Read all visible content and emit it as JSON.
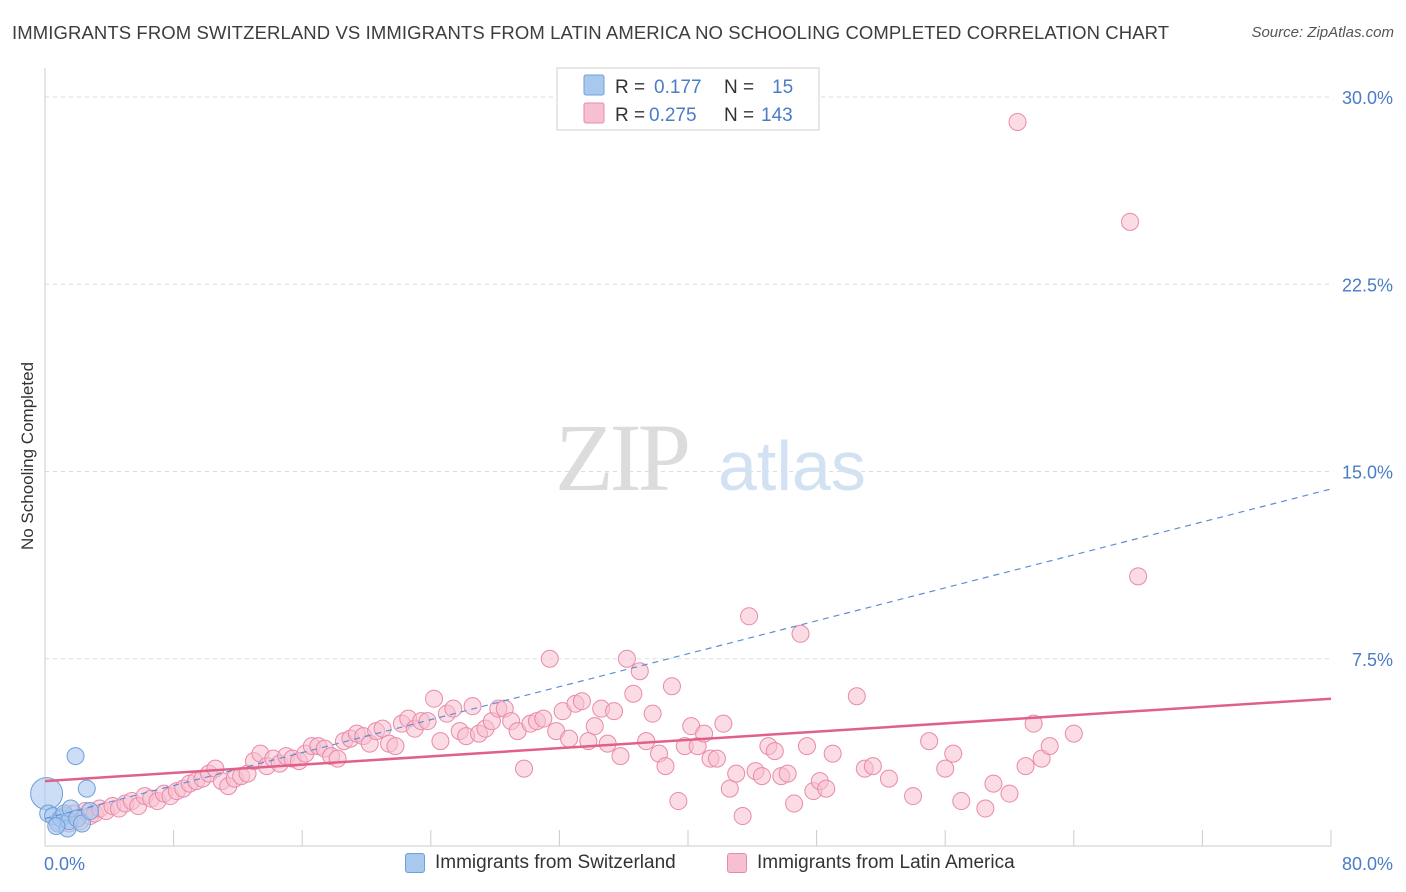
{
  "title": "IMMIGRANTS FROM SWITZERLAND VS IMMIGRANTS FROM LATIN AMERICA NO SCHOOLING COMPLETED CORRELATION CHART",
  "source": "Source: ZipAtlas.com",
  "watermark": {
    "zip": "ZIP",
    "atlas": "atlas"
  },
  "colors": {
    "blue_fill": "#a9c8ee",
    "blue_stroke": "#6f9fdc",
    "blue_line": "#5b8fd6",
    "pink_fill": "#f7c0d0",
    "pink_stroke": "#e98aa8",
    "pink_line": "#e0608a",
    "tick_text": "#4a7cc7",
    "grid": "#dddddd"
  },
  "legend": {
    "rows": [
      {
        "r_label": "R =",
        "r_value": "0.177",
        "n_label": "N =",
        "n_value": "15"
      },
      {
        "r_label": "R =",
        "r_value": "0.275",
        "n_label": "N =",
        "n_value": "143"
      }
    ]
  },
  "chart_data": {
    "type": "scatter",
    "title": "IMMIGRANTS FROM SWITZERLAND VS IMMIGRANTS FROM LATIN AMERICA NO SCHOOLING COMPLETED CORRELATION CHART",
    "xlabel": "",
    "ylabel": "No Schooling Completed",
    "xlim": [
      0,
      80
    ],
    "ylim": [
      0,
      30
    ],
    "x_tick_labels": [
      "0.0%",
      "80.0%"
    ],
    "y_ticks": [
      7.5,
      15.0,
      22.5,
      30.0
    ],
    "y_tick_labels": [
      "7.5%",
      "15.0%",
      "22.5%",
      "30.0%"
    ],
    "grid": true,
    "legend_position": "top-center",
    "series": [
      {
        "name": "Immigrants from Switzerland",
        "r": 0.177,
        "n": 15,
        "trend": {
          "x": [
            0,
            80
          ],
          "y": [
            1.1,
            14.3
          ],
          "style": "dashed"
        },
        "points": [
          [
            0.1,
            2.1
          ],
          [
            0.2,
            1.3
          ],
          [
            0.5,
            1.2
          ],
          [
            0.8,
            0.9
          ],
          [
            1.0,
            1.1
          ],
          [
            1.2,
            1.3
          ],
          [
            1.4,
            0.7
          ],
          [
            1.5,
            1.0
          ],
          [
            1.6,
            1.5
          ],
          [
            1.9,
            3.6
          ],
          [
            2.0,
            1.1
          ],
          [
            2.3,
            0.9
          ],
          [
            2.6,
            2.3
          ],
          [
            0.7,
            0.8
          ],
          [
            2.8,
            1.4
          ]
        ]
      },
      {
        "name": "Immigrants from Latin America",
        "r": 0.275,
        "n": 143,
        "trend": {
          "x": [
            0,
            80
          ],
          "y": [
            2.6,
            5.9
          ],
          "style": "solid"
        },
        "points": [
          [
            0.8,
            1.0
          ],
          [
            1.2,
            1.2
          ],
          [
            1.5,
            0.9
          ],
          [
            1.8,
            1.3
          ],
          [
            2.2,
            1.0
          ],
          [
            2.5,
            1.4
          ],
          [
            2.8,
            1.2
          ],
          [
            3.1,
            1.3
          ],
          [
            3.4,
            1.5
          ],
          [
            3.8,
            1.4
          ],
          [
            4.2,
            1.6
          ],
          [
            4.6,
            1.5
          ],
          [
            5.0,
            1.7
          ],
          [
            5.4,
            1.8
          ],
          [
            5.8,
            1.6
          ],
          [
            6.2,
            2.0
          ],
          [
            6.6,
            1.9
          ],
          [
            7.0,
            1.8
          ],
          [
            7.4,
            2.1
          ],
          [
            7.8,
            2.0
          ],
          [
            8.2,
            2.2
          ],
          [
            8.6,
            2.3
          ],
          [
            9.0,
            2.5
          ],
          [
            9.4,
            2.6
          ],
          [
            9.8,
            2.7
          ],
          [
            10.2,
            2.9
          ],
          [
            10.6,
            3.1
          ],
          [
            11.0,
            2.6
          ],
          [
            11.4,
            2.4
          ],
          [
            11.8,
            2.7
          ],
          [
            12.2,
            2.8
          ],
          [
            12.6,
            2.9
          ],
          [
            13.0,
            3.4
          ],
          [
            13.4,
            3.7
          ],
          [
            13.8,
            3.2
          ],
          [
            14.2,
            3.5
          ],
          [
            14.6,
            3.3
          ],
          [
            15.0,
            3.6
          ],
          [
            15.4,
            3.5
          ],
          [
            15.8,
            3.4
          ],
          [
            16.2,
            3.7
          ],
          [
            16.6,
            4.0
          ],
          [
            17.0,
            4.0
          ],
          [
            17.4,
            3.9
          ],
          [
            17.8,
            3.6
          ],
          [
            18.2,
            3.5
          ],
          [
            18.6,
            4.2
          ],
          [
            19.0,
            4.3
          ],
          [
            19.4,
            4.5
          ],
          [
            19.8,
            4.4
          ],
          [
            20.2,
            4.1
          ],
          [
            20.6,
            4.6
          ],
          [
            21.0,
            4.7
          ],
          [
            21.4,
            4.1
          ],
          [
            21.8,
            4.0
          ],
          [
            22.2,
            4.9
          ],
          [
            22.6,
            5.1
          ],
          [
            23.0,
            4.7
          ],
          [
            23.4,
            5.0
          ],
          [
            23.8,
            5.0
          ],
          [
            24.2,
            5.9
          ],
          [
            24.6,
            4.2
          ],
          [
            25.0,
            5.3
          ],
          [
            25.4,
            5.5
          ],
          [
            25.8,
            4.6
          ],
          [
            26.2,
            4.4
          ],
          [
            26.6,
            5.6
          ],
          [
            27.0,
            4.5
          ],
          [
            27.4,
            4.7
          ],
          [
            27.8,
            5.0
          ],
          [
            28.2,
            5.5
          ],
          [
            28.6,
            5.5
          ],
          [
            29.0,
            5.0
          ],
          [
            29.4,
            4.6
          ],
          [
            29.8,
            3.1
          ],
          [
            30.2,
            4.9
          ],
          [
            30.6,
            5.0
          ],
          [
            31.0,
            5.1
          ],
          [
            31.4,
            7.5
          ],
          [
            31.8,
            4.6
          ],
          [
            32.2,
            5.4
          ],
          [
            32.6,
            4.3
          ],
          [
            33.0,
            5.7
          ],
          [
            33.4,
            5.8
          ],
          [
            33.8,
            4.2
          ],
          [
            34.2,
            4.8
          ],
          [
            34.6,
            5.5
          ],
          [
            35.0,
            4.1
          ],
          [
            35.4,
            5.4
          ],
          [
            35.8,
            3.6
          ],
          [
            36.2,
            7.5
          ],
          [
            36.6,
            6.1
          ],
          [
            37.0,
            7.0
          ],
          [
            37.4,
            4.2
          ],
          [
            37.8,
            5.3
          ],
          [
            38.2,
            3.7
          ],
          [
            38.6,
            3.2
          ],
          [
            39.0,
            6.4
          ],
          [
            39.4,
            1.8
          ],
          [
            39.8,
            4.0
          ],
          [
            40.2,
            4.8
          ],
          [
            40.6,
            4.0
          ],
          [
            41.0,
            4.5
          ],
          [
            41.4,
            3.5
          ],
          [
            41.8,
            3.5
          ],
          [
            42.2,
            4.9
          ],
          [
            42.6,
            2.3
          ],
          [
            43.0,
            2.9
          ],
          [
            43.4,
            1.2
          ],
          [
            43.8,
            9.2
          ],
          [
            44.2,
            3.0
          ],
          [
            44.6,
            2.8
          ],
          [
            45.0,
            4.0
          ],
          [
            45.4,
            3.8
          ],
          [
            45.8,
            2.8
          ],
          [
            46.2,
            2.9
          ],
          [
            46.6,
            1.7
          ],
          [
            47.0,
            8.5
          ],
          [
            47.4,
            4.0
          ],
          [
            47.8,
            2.2
          ],
          [
            48.2,
            2.6
          ],
          [
            48.6,
            2.3
          ],
          [
            49.0,
            3.7
          ],
          [
            50.5,
            6.0
          ],
          [
            51.0,
            3.1
          ],
          [
            51.5,
            3.2
          ],
          [
            52.5,
            2.7
          ],
          [
            54.0,
            2.0
          ],
          [
            55.0,
            4.2
          ],
          [
            56.0,
            3.1
          ],
          [
            56.5,
            3.7
          ],
          [
            57.0,
            1.8
          ],
          [
            58.5,
            1.5
          ],
          [
            59.0,
            2.5
          ],
          [
            60.0,
            2.1
          ],
          [
            61.0,
            3.2
          ],
          [
            61.5,
            4.9
          ],
          [
            62.0,
            3.5
          ],
          [
            62.5,
            4.0
          ],
          [
            64.0,
            4.5
          ],
          [
            68.0,
            10.8
          ],
          [
            60.5,
            29.0
          ],
          [
            67.5,
            25.0
          ]
        ]
      }
    ]
  },
  "bottom_legend": {
    "items": [
      {
        "label": "Immigrants from Switzerland"
      },
      {
        "label": "Immigrants from Latin America"
      }
    ]
  }
}
